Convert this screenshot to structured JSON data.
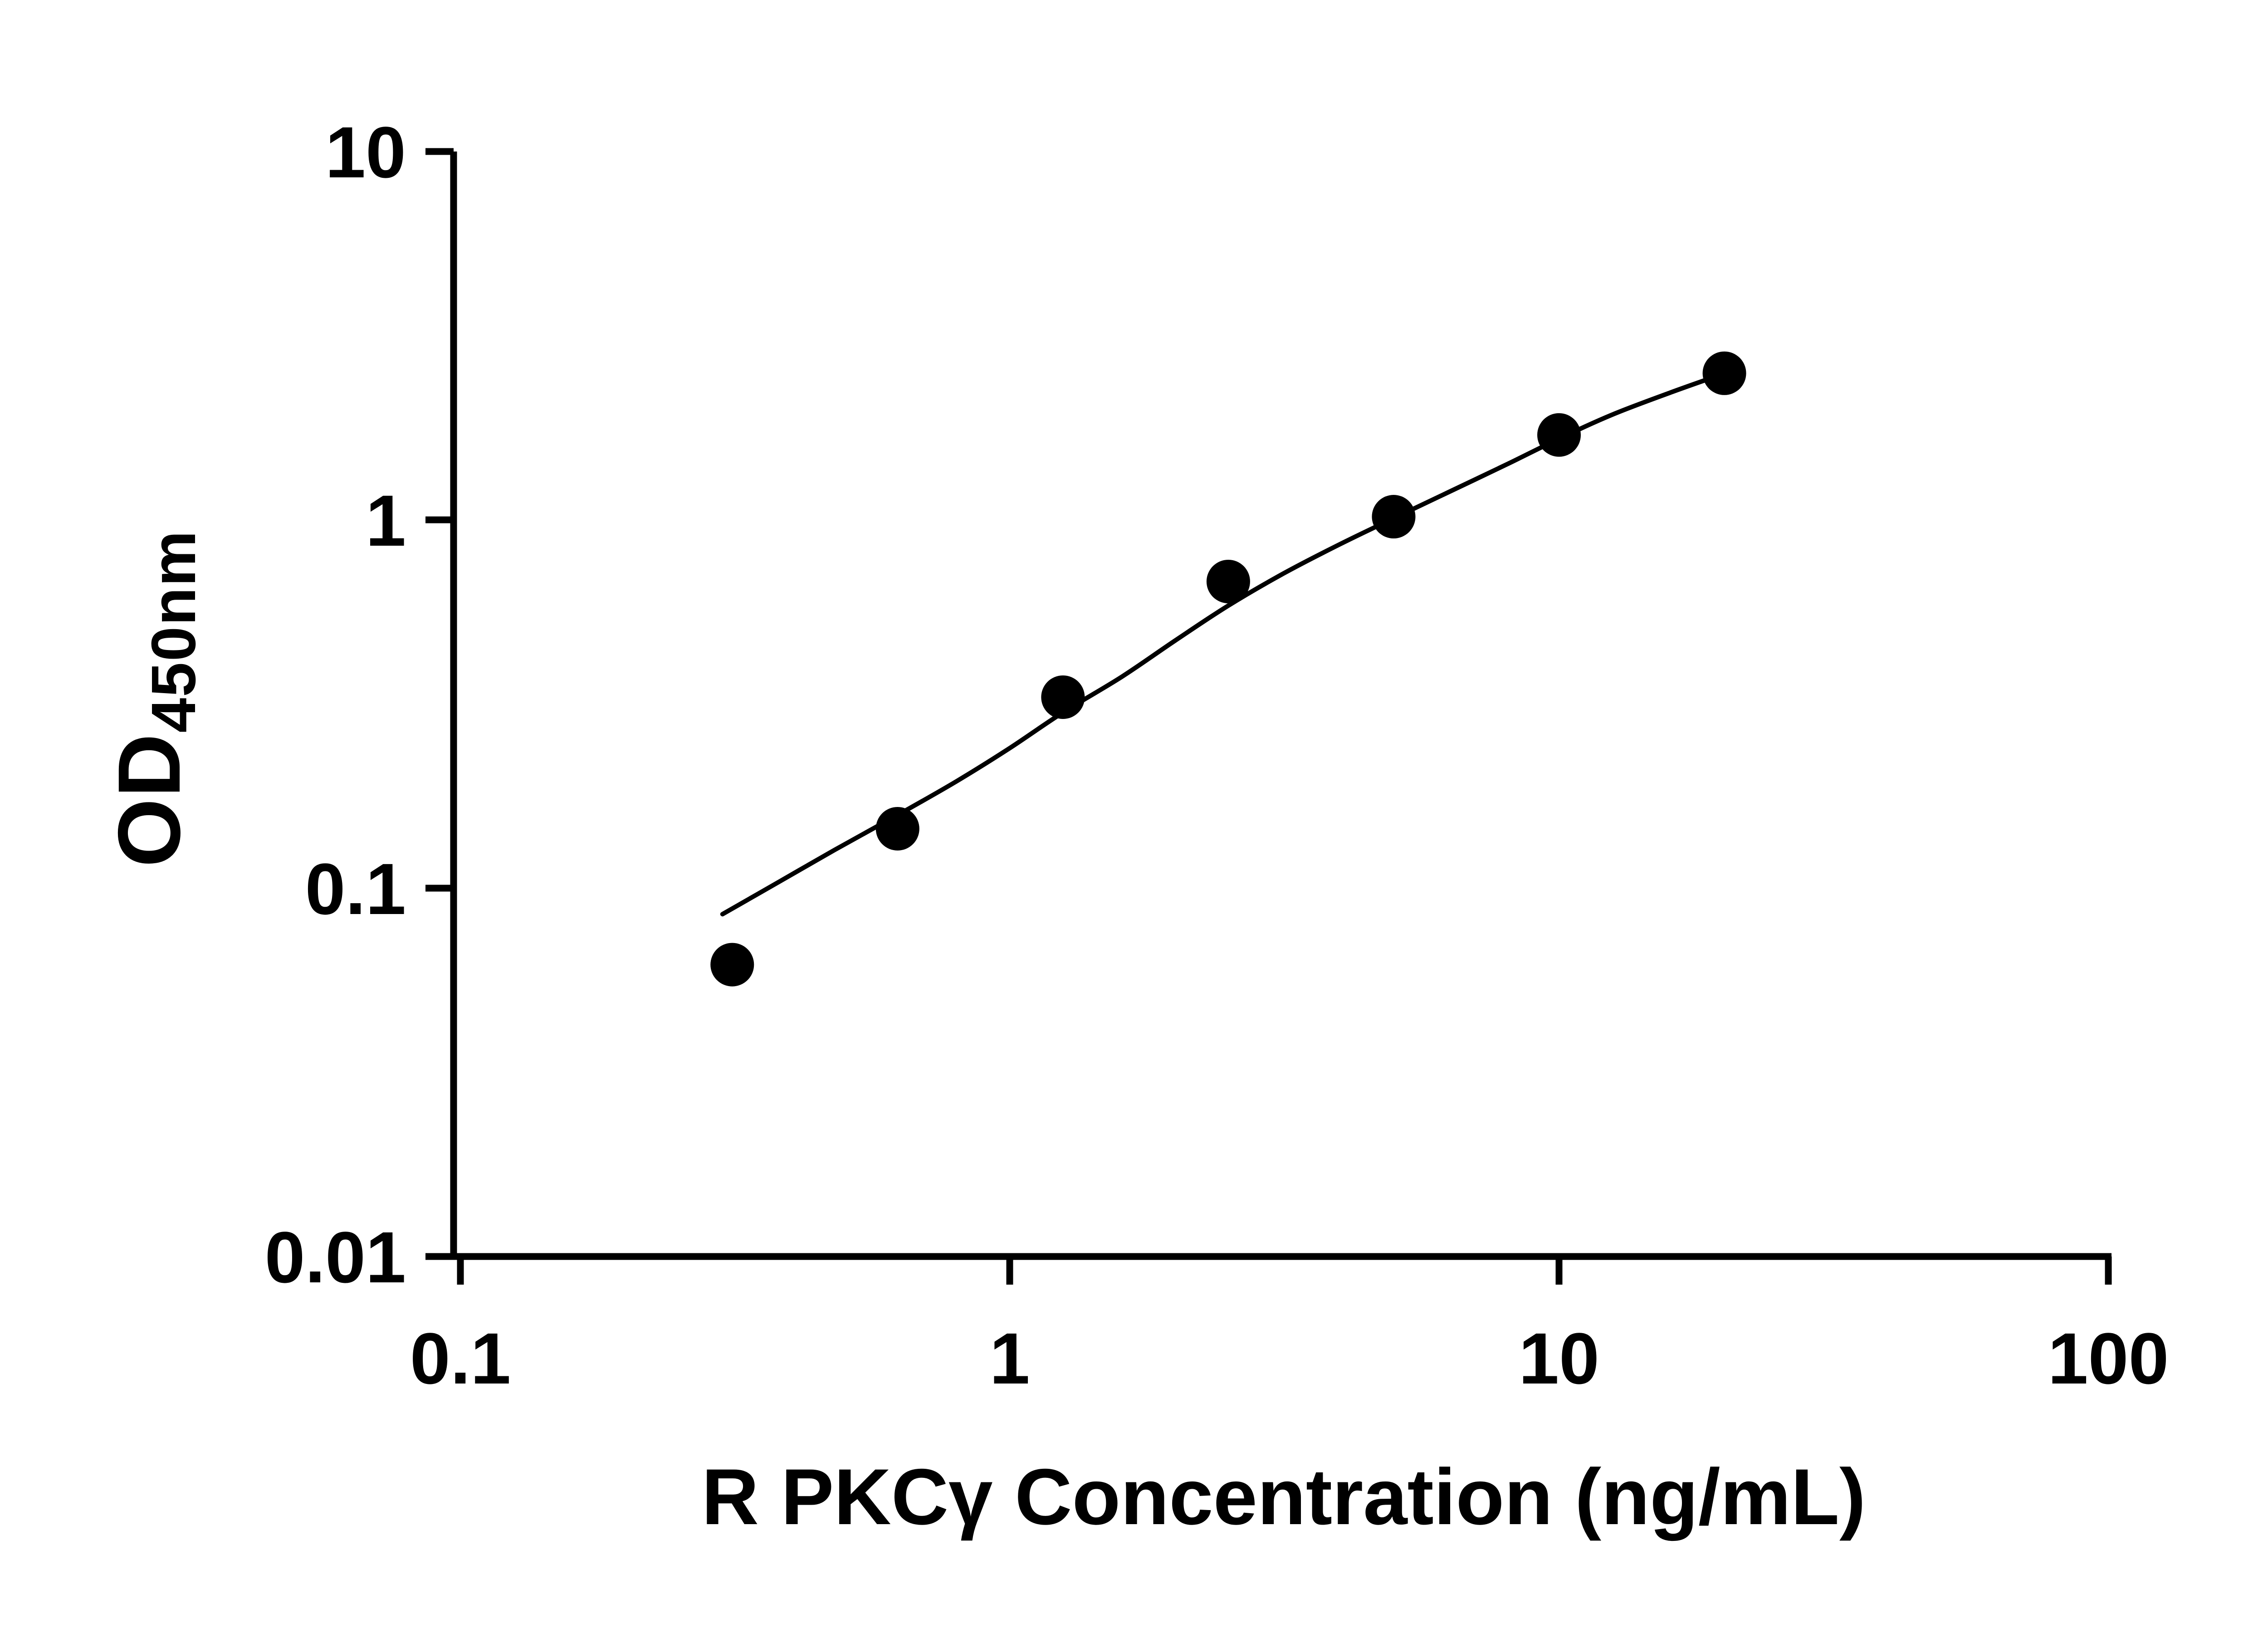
{
  "chart_data": {
    "type": "scatter",
    "title": "",
    "xlabel": "R PKCγ Concentration (ng/mL)",
    "ylabel": "OD",
    "ylabel_subscript": "450nm",
    "x_scale": "log",
    "y_scale": "log",
    "xlim": [
      0.1,
      100
    ],
    "ylim": [
      0.01,
      10
    ],
    "grid": false,
    "legend": false,
    "axis_color": "#000000",
    "marker_color": "#000000",
    "line_color": "#000000",
    "x_ticks": [
      {
        "value": 0.1,
        "label": "0.1"
      },
      {
        "value": 1,
        "label": "1"
      },
      {
        "value": 10,
        "label": "10"
      },
      {
        "value": 100,
        "label": "100"
      }
    ],
    "y_ticks": [
      {
        "value": 0.01,
        "label": "0.01"
      },
      {
        "value": 0.1,
        "label": "0.1"
      },
      {
        "value": 1,
        "label": "1"
      },
      {
        "value": 10,
        "label": "10"
      }
    ],
    "points": [
      {
        "x": 0.3125,
        "y": 0.062
      },
      {
        "x": 0.625,
        "y": 0.145
      },
      {
        "x": 1.25,
        "y": 0.33
      },
      {
        "x": 2.5,
        "y": 0.68
      },
      {
        "x": 5,
        "y": 1.02
      },
      {
        "x": 10,
        "y": 1.7
      },
      {
        "x": 20,
        "y": 2.5
      }
    ],
    "fit_curve": [
      [
        0.3,
        0.085
      ],
      [
        0.38,
        0.104
      ],
      [
        0.48,
        0.127
      ],
      [
        0.625,
        0.158
      ],
      [
        0.8,
        0.195
      ],
      [
        1.0,
        0.24
      ],
      [
        1.25,
        0.3
      ],
      [
        1.6,
        0.375
      ],
      [
        2.0,
        0.47
      ],
      [
        2.5,
        0.585
      ],
      [
        3.15,
        0.715
      ],
      [
        4.0,
        0.86
      ],
      [
        5.0,
        1.01
      ],
      [
        6.3,
        1.19
      ],
      [
        8.0,
        1.41
      ],
      [
        10.0,
        1.66
      ],
      [
        12.5,
        1.93
      ],
      [
        16.0,
        2.22
      ],
      [
        20.0,
        2.5
      ],
      [
        20.6,
        2.56
      ]
    ]
  }
}
